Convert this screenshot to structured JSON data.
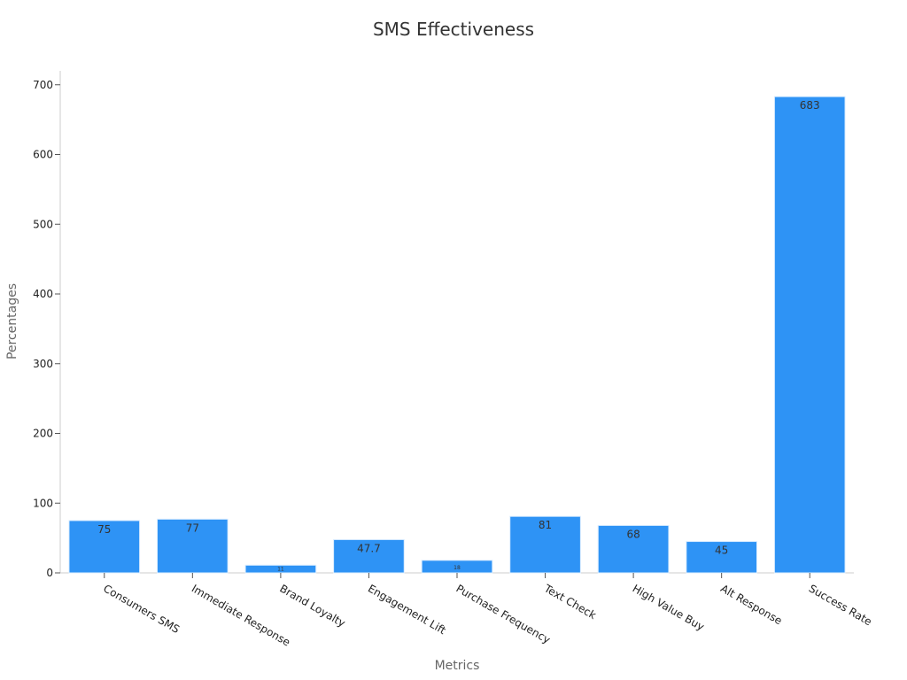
{
  "chart_data": {
    "type": "bar",
    "title": "SMS Effectiveness",
    "xlabel": "Metrics",
    "ylabel": "Percentages",
    "categories": [
      "Consumers SMS",
      "Immediate Response",
      "Brand Loyalty",
      "Engagement Lift",
      "Purchase Frequency",
      "Text Check",
      "High Value Buy",
      "Alt Response",
      "Success Rate"
    ],
    "values": [
      75,
      77,
      11,
      47.7,
      18,
      81,
      68,
      45,
      683
    ],
    "value_labels": [
      "75",
      "77",
      "11",
      "47.7",
      "18",
      "81",
      "68",
      "45",
      "683"
    ],
    "ylim": [
      0,
      720
    ],
    "yticks": [
      0,
      100,
      200,
      300,
      400,
      500,
      600,
      700
    ],
    "grid": false,
    "legend": "none",
    "bar_color": "#2e93f5"
  }
}
